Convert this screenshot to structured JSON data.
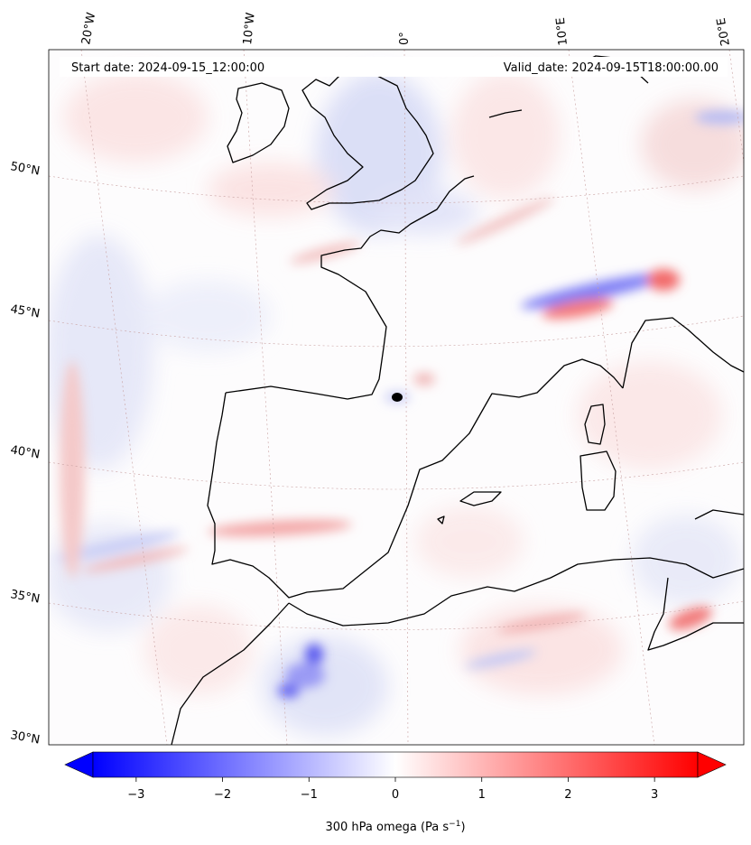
{
  "header": {
    "start_date": "Start date: 2024-09-15_12:00:00",
    "valid_date": "Valid_date: 2024-09-15T18:00:00.00"
  },
  "map": {
    "lon_labels": [
      "20°W",
      "10°W",
      "0°",
      "10°E",
      "20°E"
    ],
    "lat_labels": [
      "50°N",
      "45°N",
      "40°N",
      "35°N",
      "30°N"
    ],
    "coastline_color": "#000000",
    "gridline_color": "#c8a0a0"
  },
  "field": {
    "variable": "300 hPa omega",
    "anomalies": [
      {
        "region": "north-italy-alps",
        "value": 2.5,
        "sign": "positive"
      },
      {
        "region": "north-adriatic",
        "value": -2.0,
        "sign": "negative"
      },
      {
        "region": "atlas-morocco",
        "value": -2.5,
        "sign": "negative"
      },
      {
        "region": "gulf-of-cadiz",
        "value": 1.2,
        "sign": "positive"
      },
      {
        "region": "tunisia",
        "value": 1.5,
        "sign": "positive"
      },
      {
        "region": "english-channel",
        "value": -0.6,
        "sign": "negative"
      }
    ]
  },
  "colorbar": {
    "label": "300 hPa omega (Pa s",
    "label_sup": "−1",
    "label_end": ")",
    "ticks": [
      "−3",
      "−2",
      "−1",
      "0",
      "1",
      "2",
      "3"
    ],
    "tick_values": [
      -3,
      -2,
      -1,
      0,
      1,
      2,
      3
    ],
    "min": -3.5,
    "max": 3.5,
    "colors": [
      "#0000ff",
      "#ffffff",
      "#ff0000"
    ]
  }
}
